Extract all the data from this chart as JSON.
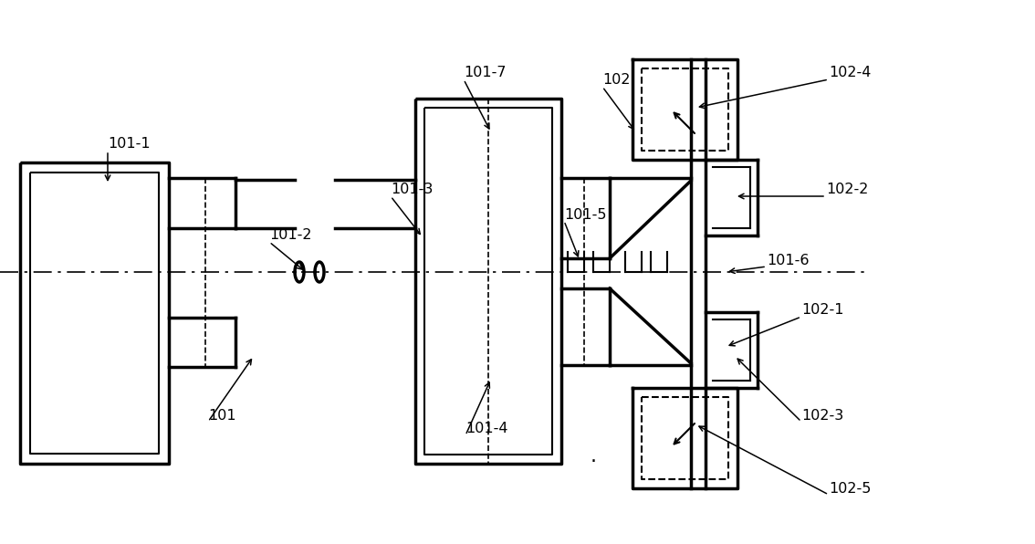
{
  "bg_color": "#ffffff",
  "line_color": "#000000",
  "fig_width": 11.34,
  "fig_height": 5.96,
  "dpi": 100
}
